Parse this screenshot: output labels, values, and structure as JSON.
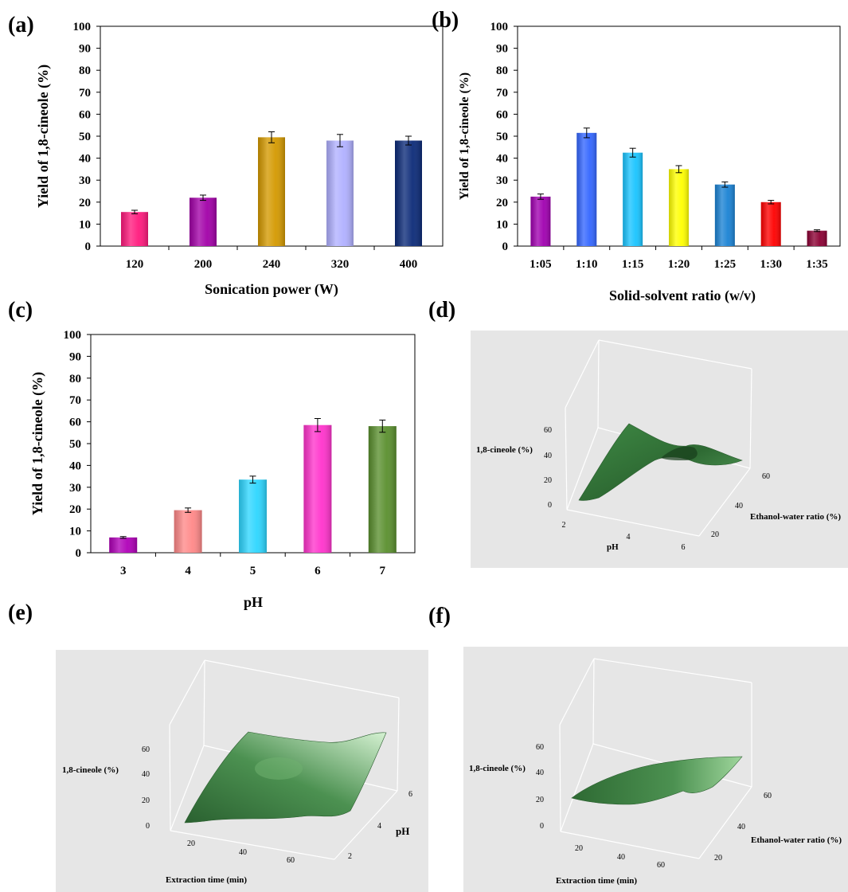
{
  "colors": {
    "panel_bg": "#e6e6e6",
    "surface_dark": "#2e6a33",
    "surface_mid": "#4c9151",
    "surface_light": "#c8eac6",
    "error_bar": "#000000"
  },
  "chart_data": [
    {
      "panel": "(a)",
      "type": "bar",
      "categories": [
        "120",
        "200",
        "240",
        "320",
        "400"
      ],
      "values": [
        15.5,
        22,
        49.5,
        48,
        48
      ],
      "errors": [
        0.8,
        1.2,
        2.5,
        2.8,
        2
      ],
      "colors": [
        "#ff1a7d",
        "#a200a8",
        "#d49900",
        "#b0b0ff",
        "#0b2a78"
      ],
      "xlabel": "Sonication power (W)",
      "ylabel": "Yield of 1,8-cineole (%)",
      "ylim": [
        0,
        100
      ],
      "yticks": [
        "0",
        "10",
        "20",
        "30",
        "40",
        "50",
        "60",
        "70",
        "80",
        "90",
        "100"
      ],
      "grid": false
    },
    {
      "panel": "(b)",
      "type": "bar",
      "categories": [
        "1:05",
        "1:10",
        "1:15",
        "1:20",
        "1:25",
        "1:30",
        "1:35"
      ],
      "values": [
        22.5,
        51.5,
        42.5,
        35,
        28,
        20,
        7
      ],
      "errors": [
        1.2,
        2.2,
        2,
        1.6,
        1.2,
        0.8,
        0.4
      ],
      "colors": [
        "#a000b0",
        "#3366ff",
        "#19c4ff",
        "#ffff00",
        "#1a82d4",
        "#ff0000",
        "#8b0033"
      ],
      "xlabel": "Solid-solvent ratio (w/v)",
      "ylabel": "Yield of 1,8-cineole (%)",
      "ylim": [
        0,
        100
      ],
      "yticks": [
        "0",
        "10",
        "20",
        "30",
        "40",
        "50",
        "60",
        "70",
        "80",
        "90",
        "100"
      ],
      "grid": false
    },
    {
      "panel": "(c)",
      "type": "bar",
      "categories": [
        "3",
        "4",
        "5",
        "6",
        "7"
      ],
      "values": [
        7,
        19.5,
        33.5,
        58.5,
        58
      ],
      "errors": [
        0.4,
        1,
        1.6,
        3,
        2.8
      ],
      "colors": [
        "#b000b8",
        "#ff8888",
        "#2dd6ff",
        "#ff33cc",
        "#5a8f2e"
      ],
      "xlabel": "pH",
      "ylabel": "Yield of 1,8-cineole (%)",
      "ylim": [
        0,
        100
      ],
      "yticks": [
        "0",
        "10",
        "20",
        "30",
        "40",
        "50",
        "60",
        "70",
        "80",
        "90",
        "100"
      ],
      "grid": false
    },
    {
      "panel": "(d)",
      "type": "surface",
      "zlabel": "1,8-cineole (%)",
      "xlabel": "pH",
      "ylabel": "Ethanol-water ratio (%)",
      "zticks": [
        "0",
        "20",
        "40",
        "60"
      ],
      "xticks": [
        "2",
        "4",
        "6"
      ],
      "yticks": [
        "20",
        "40",
        "60"
      ]
    },
    {
      "panel": "(e)",
      "type": "surface",
      "zlabel": "1,8-cineole (%)",
      "xlabel": "Extraction time (min)",
      "ylabel": "pH",
      "zticks": [
        "0",
        "20",
        "40",
        "60"
      ],
      "xticks": [
        "20",
        "40",
        "60"
      ],
      "yticks": [
        "2",
        "4",
        "6"
      ]
    },
    {
      "panel": "(f)",
      "type": "surface",
      "zlabel": "1,8-cineole (%)",
      "xlabel": "Extraction time (min)",
      "ylabel": "Ethanol-water ratio (%)",
      "zticks": [
        "0",
        "20",
        "40",
        "60"
      ],
      "xticks": [
        "20",
        "40",
        "60"
      ],
      "yticks": [
        "20",
        "40",
        "60"
      ]
    }
  ]
}
